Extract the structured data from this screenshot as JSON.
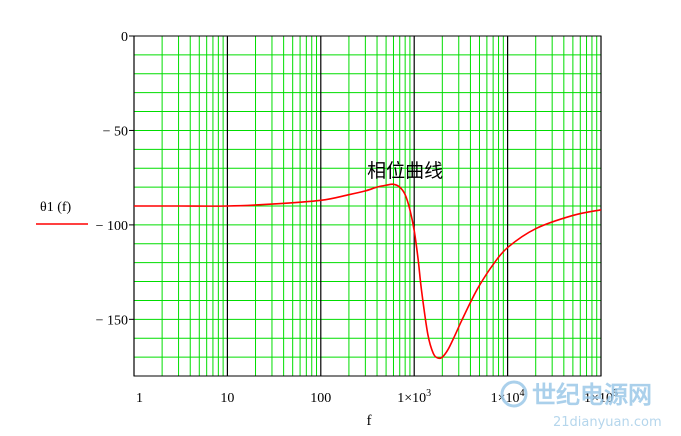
{
  "chart_data": {
    "type": "line",
    "xscale": "log",
    "xlim": [
      1,
      100000
    ],
    "ylim": [
      -180,
      0
    ],
    "x_ticks": [
      1,
      10,
      100,
      1000,
      10000,
      100000
    ],
    "x_tick_labels": [
      {
        "text": "1"
      },
      {
        "text": "10"
      },
      {
        "text": "100"
      },
      {
        "base": "1×10",
        "exp": "3"
      },
      {
        "base": "1×10",
        "exp": "4"
      },
      {
        "base": "1×10",
        "exp": "5"
      }
    ],
    "y_ticks": [
      0,
      -50,
      -100,
      -150
    ],
    "y_tick_labels": [
      "0",
      "− 50",
      "− 100",
      "− 150"
    ],
    "xlabel": "f",
    "ylabel": "",
    "grid": true,
    "legend": "left",
    "series": [
      {
        "name": "θ1 (f)",
        "color": "#ff0000",
        "x": [
          1,
          3,
          10,
          30,
          100,
          200,
          300,
          400,
          500,
          600,
          700,
          800,
          900,
          1000,
          1100,
          1200,
          1400,
          1600,
          1800,
          2000,
          2300,
          2700,
          3200,
          4000,
          5000,
          7000,
          10000,
          20000,
          50000,
          100000
        ],
        "y": [
          -90,
          -90,
          -90,
          -89,
          -87,
          -84,
          -82,
          -80,
          -79,
          -78.5,
          -80,
          -84,
          -92,
          -103,
          -118,
          -135,
          -158,
          -168,
          -170.5,
          -170,
          -166,
          -159,
          -151,
          -141,
          -132,
          -121,
          -112,
          -102,
          -95,
          -92
        ]
      }
    ],
    "annotations": [
      {
        "text": "相位曲线",
        "x": 800,
        "y": -71
      }
    ],
    "colors": {
      "grid": "#00dd00",
      "decade_grid": "#000000",
      "frame": "#000000",
      "background": "#ffffff"
    }
  },
  "watermark": {
    "text": "世纪电源网",
    "subtext": "21dianyuan.com"
  }
}
